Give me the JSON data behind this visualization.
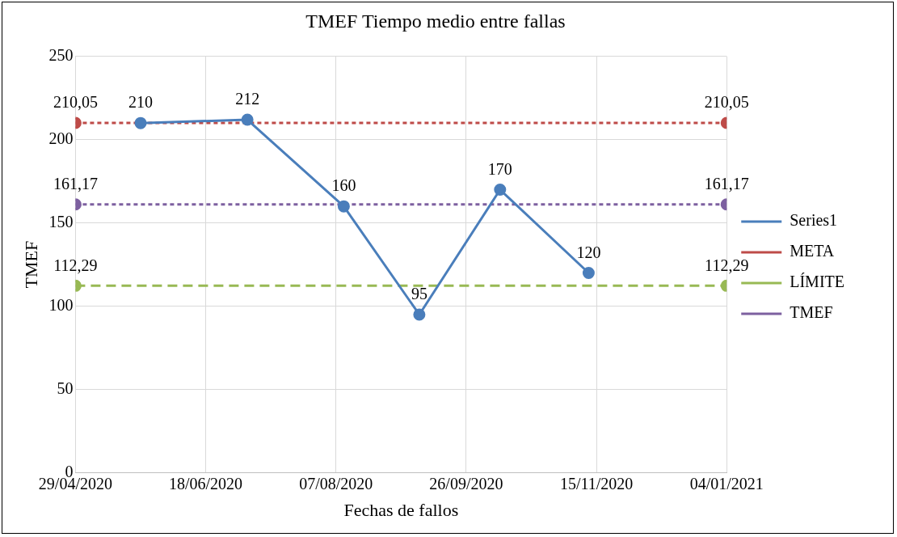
{
  "chart_data": {
    "type": "line",
    "title": "TMEF Tiempo medio entre fallas",
    "xlabel": "Fechas de fallos",
    "ylabel": "TMEF",
    "xlim": [
      "2020-04-29",
      "2021-01-04"
    ],
    "xticks": [
      {
        "value": "2020-04-29",
        "label": "29/04/2020"
      },
      {
        "value": "2020-06-18",
        "label": "18/06/2020"
      },
      {
        "value": "2020-08-07",
        "label": "07/08/2020"
      },
      {
        "value": "2020-09-26",
        "label": "26/09/2020"
      },
      {
        "value": "2020-11-15",
        "label": "15/11/2020"
      },
      {
        "value": "2021-01-04",
        "label": "04/01/2021"
      }
    ],
    "ylim": [
      0,
      250
    ],
    "yticks": [
      0,
      50,
      100,
      150,
      200,
      250
    ],
    "grid": true,
    "legend": "right",
    "marker": "circle",
    "series": [
      {
        "name": "Series1",
        "color": "#4a7ebb",
        "line_style": "solid",
        "x": [
          "2020-05-24",
          "2020-07-04",
          "2020-08-10",
          "2020-09-08",
          "2020-10-09",
          "2020-11-12"
        ],
        "values": [
          210,
          212,
          160,
          95,
          170,
          120
        ],
        "value_labels": [
          "210",
          "212",
          "160",
          "95",
          "170",
          "120"
        ]
      },
      {
        "name": "META",
        "color": "#be4b48",
        "line_style": "dotted",
        "x": [
          "2020-04-29",
          "2021-01-04"
        ],
        "values": [
          210.05,
          210.05
        ],
        "value_labels": [
          "210,05",
          "210,05"
        ]
      },
      {
        "name": "LÍMITE",
        "color": "#98b954",
        "line_style": "dashed",
        "x": [
          "2020-04-29",
          "2021-01-04"
        ],
        "values": [
          112.29,
          112.29
        ],
        "value_labels": [
          "112,29",
          "112,29"
        ]
      },
      {
        "name": "TMEF",
        "color": "#7d60a0",
        "line_style": "dotted",
        "x": [
          "2020-04-29",
          "2021-01-04"
        ],
        "values": [
          161.17,
          161.17
        ],
        "value_labels": [
          "161,17",
          "161,17"
        ]
      }
    ]
  }
}
